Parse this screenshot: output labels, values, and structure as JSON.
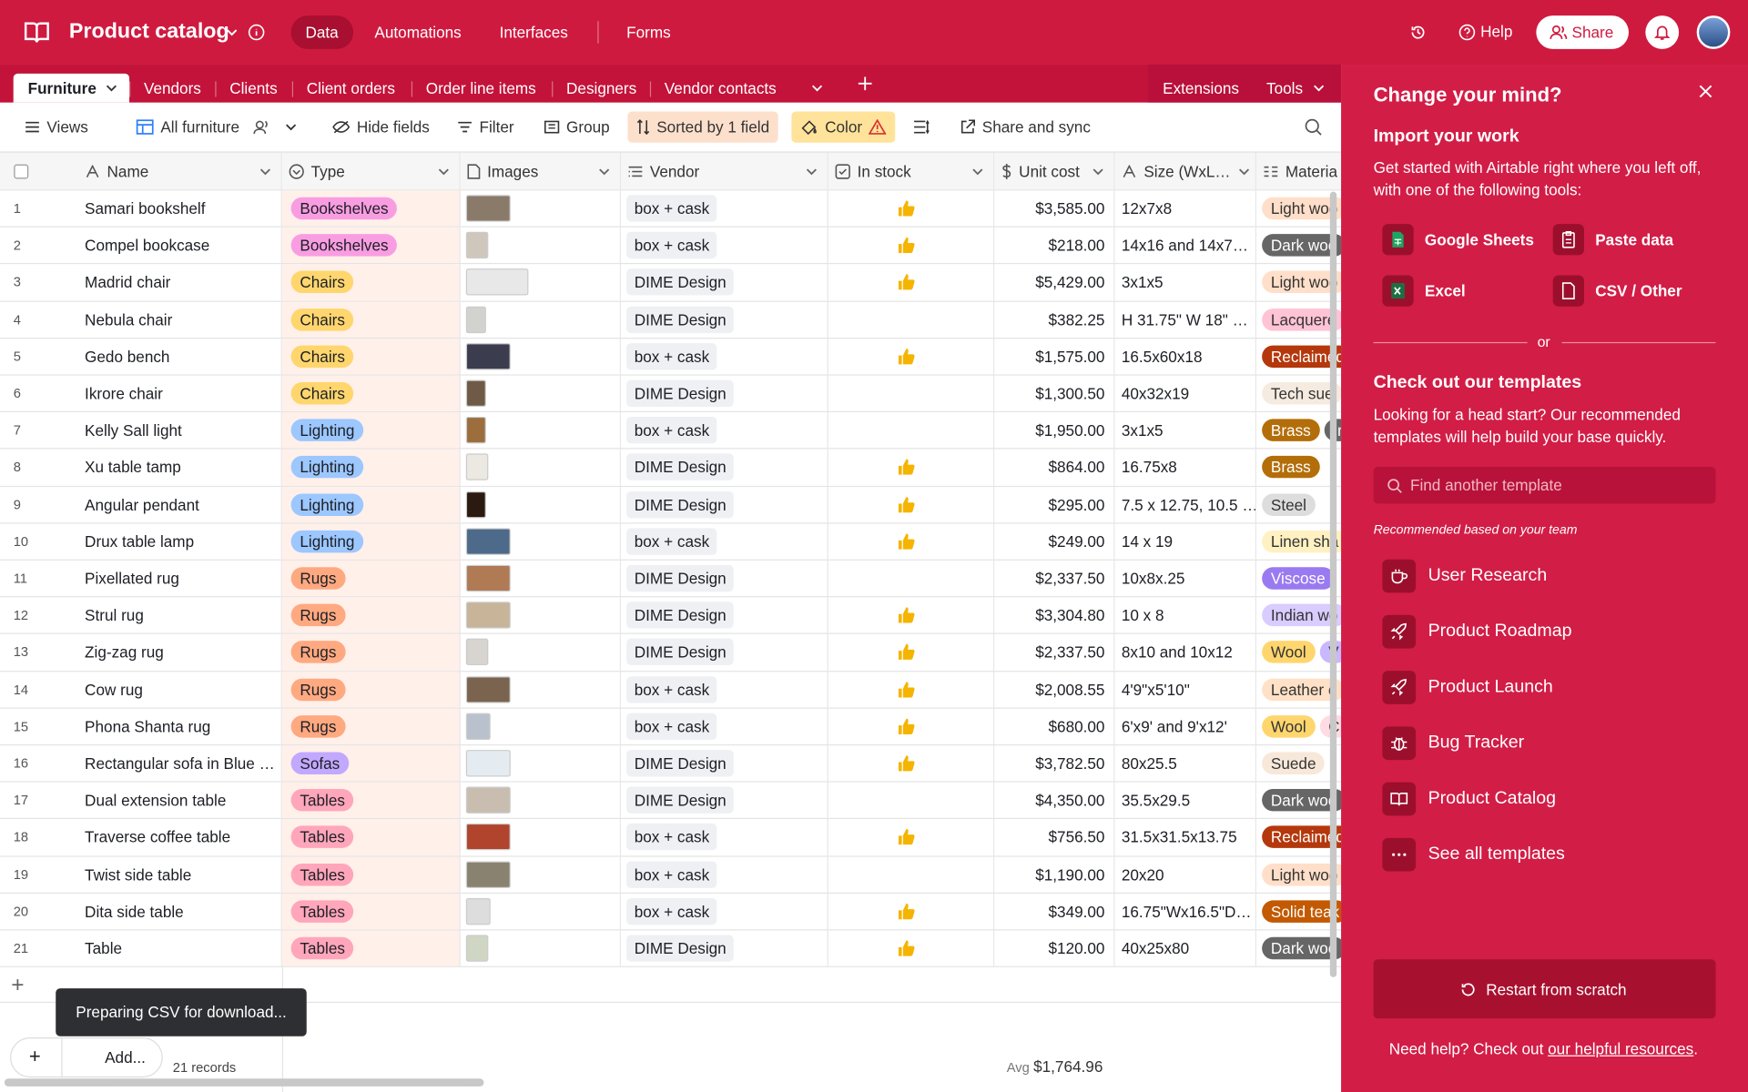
{
  "header": {
    "title": "Product catalog",
    "nav": [
      "Data",
      "Automations",
      "Interfaces",
      "Forms"
    ],
    "help": "Help",
    "share": "Share"
  },
  "tabs": [
    "Furniture",
    "Vendors",
    "Clients",
    "Client orders",
    "Order line items",
    "Designers",
    "Vendor contacts"
  ],
  "tabs_right": [
    "Extensions",
    "Tools"
  ],
  "toolbar": {
    "views": "Views",
    "view_name": "All furniture",
    "hide_fields": "Hide fields",
    "filter": "Filter",
    "group": "Group",
    "sort": "Sorted by 1 field",
    "color": "Color",
    "share_sync": "Share and sync"
  },
  "columns": [
    "Name",
    "Type",
    "Images",
    "Vendor",
    "In stock",
    "Unit cost",
    "Size (WxL…",
    "Materia"
  ],
  "rows": [
    {
      "id": "1",
      "name": "Samari bookshelf",
      "type": "Bookshelves",
      "vendor": "box + cask",
      "in_stock": true,
      "unit_cost": "$3,585.00",
      "size": "12x7x8",
      "material": [
        "Light woo"
      ]
    },
    {
      "id": "2",
      "name": "Compel bookcase",
      "type": "Bookshelves",
      "vendor": "box + cask",
      "in_stock": true,
      "unit_cost": "$218.00",
      "size": "14x16 and 14x7…",
      "material": [
        "Dark woo"
      ]
    },
    {
      "id": "3",
      "name": "Madrid chair",
      "type": "Chairs",
      "vendor": "DIME Design",
      "in_stock": true,
      "unit_cost": "$5,429.00",
      "size": "3x1x5",
      "material": [
        "Light woo"
      ]
    },
    {
      "id": "4",
      "name": "Nebula chair",
      "type": "Chairs",
      "vendor": "DIME Design",
      "in_stock": false,
      "unit_cost": "$382.25",
      "size": "H 31.75\" W 18\" …",
      "material": [
        "Lacquere"
      ]
    },
    {
      "id": "5",
      "name": "Gedo bench",
      "type": "Chairs",
      "vendor": "box + cask",
      "in_stock": true,
      "unit_cost": "$1,575.00",
      "size": "16.5x60x18",
      "material": [
        "Reclaimed"
      ]
    },
    {
      "id": "6",
      "name": "Ikrore chair",
      "type": "Chairs",
      "vendor": "DIME Design",
      "in_stock": false,
      "unit_cost": "$1,300.50",
      "size": "40x32x19",
      "material": [
        "Tech sue"
      ]
    },
    {
      "id": "7",
      "name": "Kelly Sall light",
      "type": "Lighting",
      "vendor": "box + cask",
      "in_stock": false,
      "unit_cost": "$1,950.00",
      "size": "3x1x5",
      "material": [
        "Brass",
        "Ir"
      ]
    },
    {
      "id": "8",
      "name": "Xu table tamp",
      "type": "Lighting",
      "vendor": "DIME Design",
      "in_stock": true,
      "unit_cost": "$864.00",
      "size": "16.75x8",
      "material": [
        "Brass"
      ]
    },
    {
      "id": "9",
      "name": "Angular pendant",
      "type": "Lighting",
      "vendor": "DIME Design",
      "in_stock": true,
      "unit_cost": "$295.00",
      "size": "7.5 x 12.75, 10.5 …",
      "material": [
        "Steel"
      ]
    },
    {
      "id": "10",
      "name": "Drux table lamp",
      "type": "Lighting",
      "vendor": "box + cask",
      "in_stock": true,
      "unit_cost": "$249.00",
      "size": "14 x 19",
      "material": [
        "Linen sha"
      ]
    },
    {
      "id": "11",
      "name": "Pixellated rug",
      "type": "Rugs",
      "vendor": "DIME Design",
      "in_stock": false,
      "unit_cost": "$2,337.50",
      "size": "10x8x.25",
      "material": [
        "Viscose"
      ]
    },
    {
      "id": "12",
      "name": "Strul rug",
      "type": "Rugs",
      "vendor": "DIME Design",
      "in_stock": true,
      "unit_cost": "$3,304.80",
      "size": "10 x 8",
      "material": [
        "Indian wo"
      ]
    },
    {
      "id": "13",
      "name": "Zig-zag rug",
      "type": "Rugs",
      "vendor": "DIME Design",
      "in_stock": true,
      "unit_cost": "$2,337.50",
      "size": "8x10 and 10x12",
      "material": [
        "Wool",
        "V"
      ]
    },
    {
      "id": "14",
      "name": "Cow rug",
      "type": "Rugs",
      "vendor": "box + cask",
      "in_stock": true,
      "unit_cost": "$2,008.55",
      "size": "4'9\"x5'10\"",
      "material": [
        "Leather c"
      ]
    },
    {
      "id": "15",
      "name": "Phona Shanta rug",
      "type": "Rugs",
      "vendor": "box + cask",
      "in_stock": true,
      "unit_cost": "$680.00",
      "size": "6'x9' and 9'x12'",
      "material": [
        "Wool",
        "C"
      ]
    },
    {
      "id": "16",
      "name": "Rectangular sofa in Blue …",
      "type": "Sofas",
      "vendor": "DIME Design",
      "in_stock": true,
      "unit_cost": "$3,782.50",
      "size": "80x25.5",
      "material": [
        "Suede"
      ]
    },
    {
      "id": "17",
      "name": "Dual extension table",
      "type": "Tables",
      "vendor": "DIME Design",
      "in_stock": false,
      "unit_cost": "$4,350.00",
      "size": "35.5x29.5",
      "material": [
        "Dark woo"
      ]
    },
    {
      "id": "18",
      "name": "Traverse coffee table",
      "type": "Tables",
      "vendor": "box + cask",
      "in_stock": true,
      "unit_cost": "$756.50",
      "size": "31.5x31.5x13.75",
      "material": [
        "Reclaimed"
      ]
    },
    {
      "id": "19",
      "name": "Twist side table",
      "type": "Tables",
      "vendor": "box + cask",
      "in_stock": false,
      "unit_cost": "$1,190.00",
      "size": "20x20",
      "material": [
        "Light woo"
      ]
    },
    {
      "id": "20",
      "name": "Dita side table",
      "type": "Tables",
      "vendor": "box + cask",
      "in_stock": true,
      "unit_cost": "$349.00",
      "size": "16.75\"Wx16.5\"D…",
      "material": [
        "Solid teak"
      ]
    },
    {
      "id": "21",
      "name": "Table",
      "type": "Tables",
      "vendor": "DIME Design",
      "in_stock": true,
      "unit_cost": "$120.00",
      "size": "40x25x80",
      "material": [
        "Dark woo"
      ]
    }
  ],
  "footer": {
    "toast": "Preparing CSV for download...",
    "add": "Add...",
    "records": "21 records",
    "avg_label": "Avg",
    "avg_value": "$1,764.96"
  },
  "panel": {
    "title": "Change your mind?",
    "import_title": "Import your work",
    "import_desc": [
      "Get started with Airtable right where you left off,",
      "with one of the following tools:"
    ],
    "tools": [
      "Google Sheets",
      "Paste data",
      "Excel",
      "CSV / Other"
    ],
    "or": "or",
    "templates_title": "Check out our templates",
    "templates_desc": [
      "Looking for a head start? Our recommended",
      "templates will help build your base quickly."
    ],
    "search": "Find another template",
    "recommended": "Recommended based on your team",
    "templates": [
      "User Research",
      "Product Roadmap",
      "Product Launch",
      "Bug Tracker",
      "Product Catalog",
      "See all templates"
    ],
    "restart": "Restart from scratch",
    "help_prefix": "Need help? Check out ",
    "help_link": "our helpful resources",
    "help_suffix": "."
  }
}
